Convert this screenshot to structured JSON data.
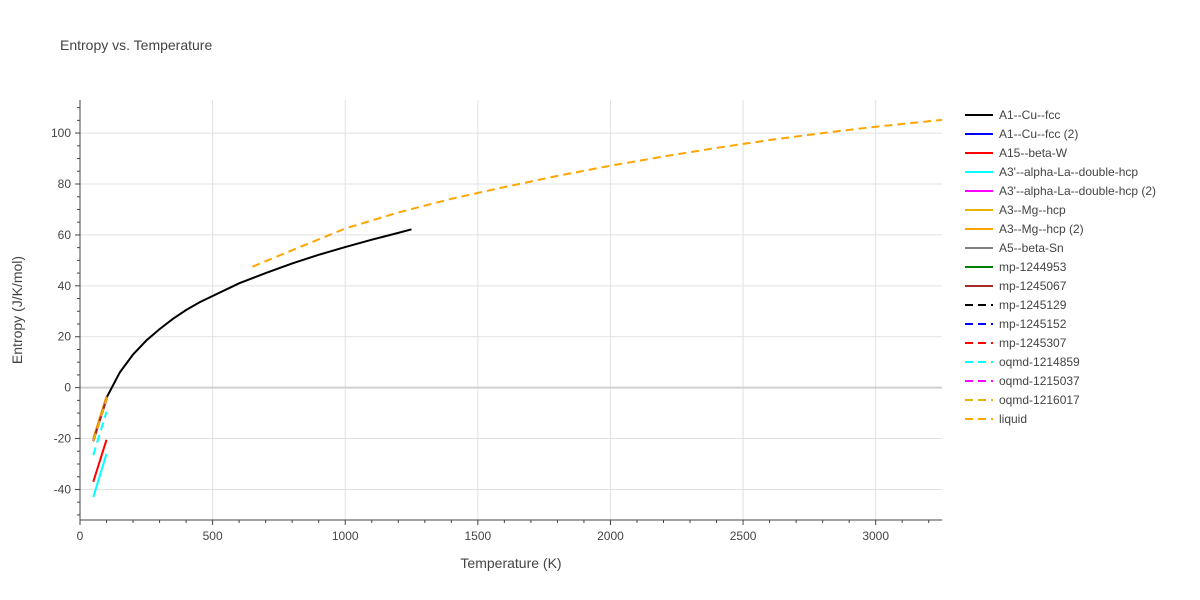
{
  "chart_data": {
    "type": "line",
    "title": "Entropy vs. Temperature",
    "xlabel": "Temperature (K)",
    "ylabel": "Entropy (J/K/mol)",
    "xlim": [
      0,
      3250
    ],
    "ylim": [
      -52,
      113
    ],
    "xticks": [
      0,
      500,
      1000,
      1500,
      2000,
      2500,
      3000
    ],
    "yticks": [
      -40,
      -20,
      0,
      20,
      40,
      60,
      80,
      100
    ],
    "grid": true,
    "legend_position": "right",
    "series": [
      {
        "name": "A1--Cu--fcc",
        "color": "#000000",
        "dash": "solid",
        "x": [
          50,
          100,
          150,
          200,
          250,
          300,
          350,
          400,
          450,
          500,
          600,
          700,
          800,
          900,
          1000,
          1100,
          1200,
          1250
        ],
        "y": [
          -21,
          -4,
          6,
          13,
          18.5,
          23,
          27,
          30.5,
          33.5,
          36,
          41,
          45,
          48.8,
          52.2,
          55.2,
          58.1,
          60.8,
          62.2
        ]
      },
      {
        "name": "A1--Cu--fcc (2)",
        "color": "#0000ff",
        "dash": "solid",
        "x": [
          50,
          100
        ],
        "y": [
          -21,
          -4
        ]
      },
      {
        "name": "A15--beta-W",
        "color": "#ff0000",
        "dash": "solid",
        "x": [
          50,
          100
        ],
        "y": [
          -37,
          -20.5
        ]
      },
      {
        "name": "A3'--alpha-La--double-hcp",
        "color": "#00ffff",
        "dash": "solid",
        "x": [
          50,
          100
        ],
        "y": [
          -43,
          -26
        ]
      },
      {
        "name": "A3'--alpha-La--double-hcp (2)",
        "color": "#ff00ff",
        "dash": "solid",
        "x": [
          50,
          100
        ],
        "y": [
          -20.5,
          -4
        ]
      },
      {
        "name": "A3--Mg--hcp",
        "color": "#e6b400",
        "dash": "solid",
        "x": [
          50,
          100
        ],
        "y": [
          -20,
          -3.5
        ]
      },
      {
        "name": "A3--Mg--hcp (2)",
        "color": "#ffa500",
        "dash": "solid",
        "x": [
          50,
          100
        ],
        "y": [
          -20,
          -3.5
        ]
      },
      {
        "name": "A5--beta-Sn",
        "color": "#808080",
        "dash": "solid",
        "x": [
          50,
          100
        ],
        "y": [
          -21,
          -4.5
        ]
      },
      {
        "name": "mp-1244953",
        "color": "#008000",
        "dash": "solid",
        "x": [
          50,
          100
        ],
        "y": [
          -21,
          -4.5
        ]
      },
      {
        "name": "mp-1245067",
        "color": "#a52a2a",
        "dash": "solid",
        "x": [
          50,
          100
        ],
        "y": [
          -21,
          -4.5
        ]
      },
      {
        "name": "mp-1245129",
        "color": "#000000",
        "dash": "dash",
        "x": [
          50,
          100
        ],
        "y": [
          -21,
          -4.5
        ]
      },
      {
        "name": "mp-1245152",
        "color": "#0000ff",
        "dash": "dash",
        "x": [
          50,
          100
        ],
        "y": [
          -21,
          -4.5
        ]
      },
      {
        "name": "mp-1245307",
        "color": "#ff0000",
        "dash": "dash",
        "x": [
          50,
          100
        ],
        "y": [
          -21,
          -4.5
        ]
      },
      {
        "name": "oqmd-1214859",
        "color": "#00ffff",
        "dash": "dash",
        "x": [
          50,
          100
        ],
        "y": [
          -26.5,
          -9.5
        ]
      },
      {
        "name": "oqmd-1215037",
        "color": "#ff00ff",
        "dash": "dash",
        "x": [
          50,
          100
        ],
        "y": [
          -21,
          -4.5
        ]
      },
      {
        "name": "oqmd-1216017",
        "color": "#e6b400",
        "dash": "dash",
        "x": [
          50,
          100
        ],
        "y": [
          -21,
          -4.5
        ]
      },
      {
        "name": "liquid",
        "color": "#ffa500",
        "dash": "dash",
        "x": [
          650,
          800,
          1000,
          1200,
          1400,
          1600,
          1800,
          2000,
          2200,
          2400,
          2600,
          2800,
          3000,
          3250
        ],
        "y": [
          47.5,
          54,
          62.5,
          68.8,
          74.2,
          78.8,
          83.2,
          87.2,
          90.8,
          94.2,
          97.3,
          100,
          102.5,
          105.2
        ]
      }
    ]
  }
}
